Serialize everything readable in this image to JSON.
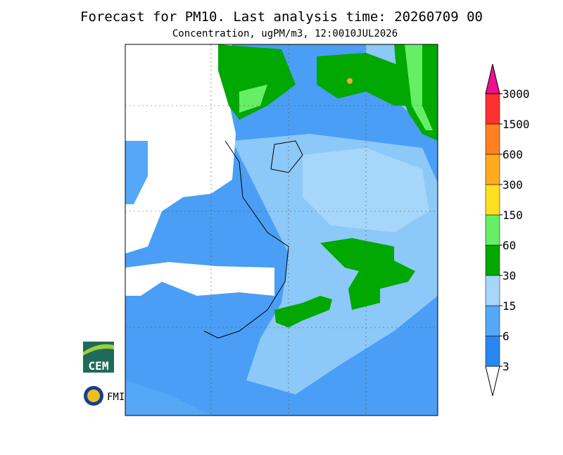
{
  "header": {
    "title": "Forecast for PM10. Last analysis time: 20260709 00",
    "subtitle": "Concentration, ugPM/m3, 12:0010JUL2026"
  },
  "colorbar": {
    "levels": [
      3,
      6,
      15,
      30,
      60,
      150,
      300,
      600,
      1500,
      3000
    ],
    "colors": [
      "#ffffff",
      "#2a86f0",
      "#55a8f5",
      "#a6d6fa",
      "#00a800",
      "#66ee66",
      "#ffe020",
      "#ffaa20",
      "#ff8020",
      "#ff3030",
      "#ee1090"
    ]
  },
  "logos": {
    "cem": "CEM",
    "fmi": "FMI"
  }
}
